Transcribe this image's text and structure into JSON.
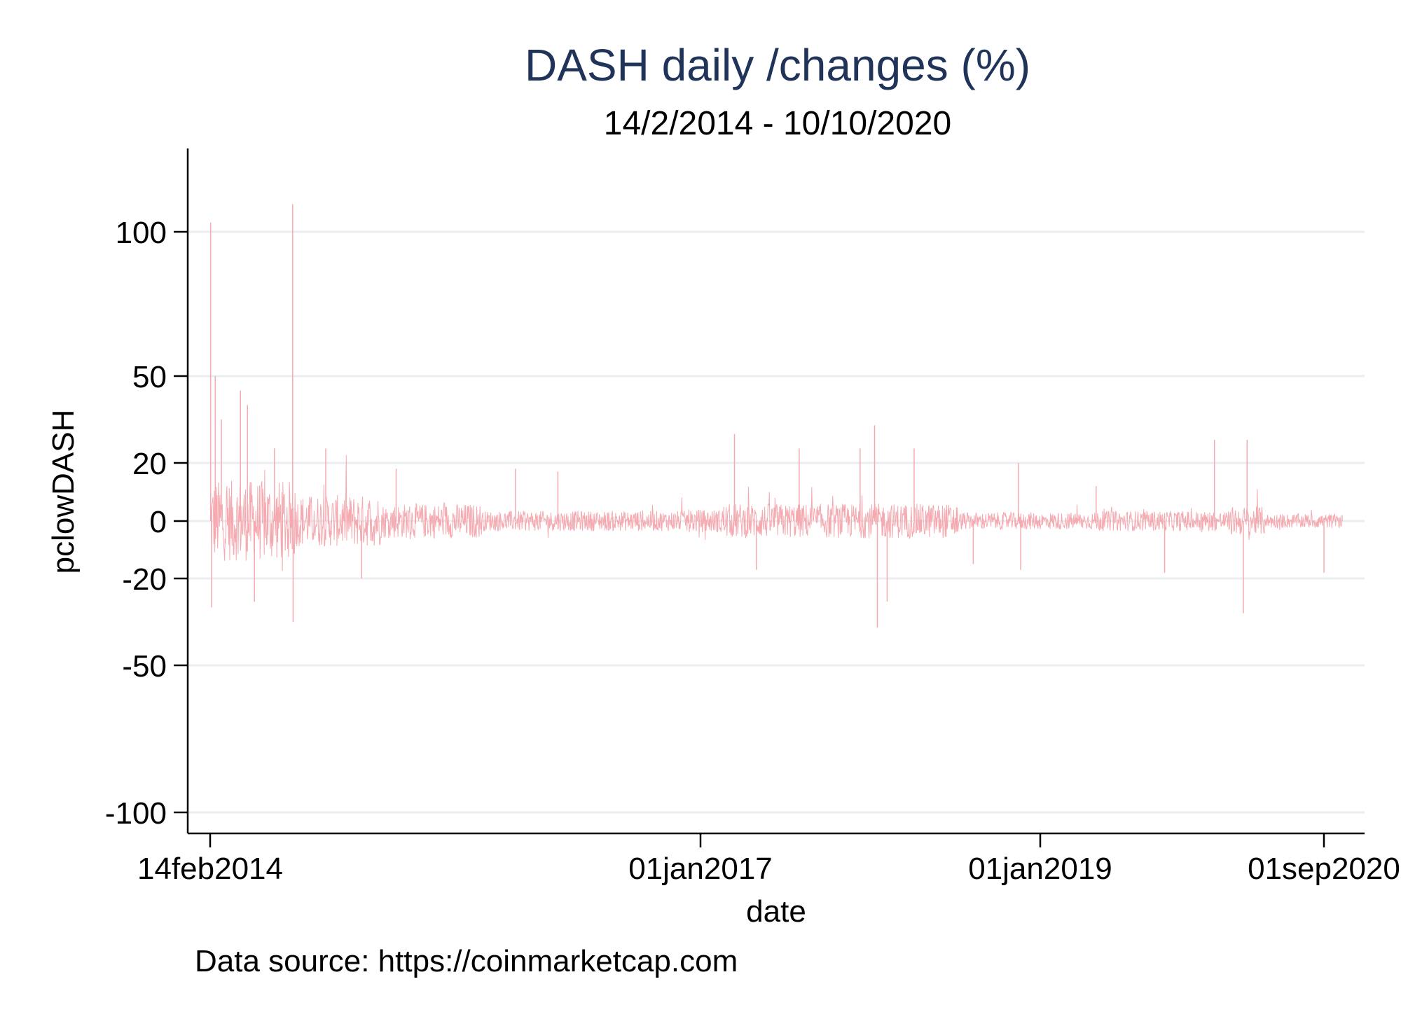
{
  "chart_data": {
    "type": "line",
    "title": "DASH daily /changes (%)",
    "subtitle": "14/2/2014 - 10/10/2020",
    "xlabel": "date",
    "ylabel": "pclowDASH",
    "note": "Data source: https://coinmarketcap.com",
    "ylim": [
      -105,
      125
    ],
    "xlim": [
      "2013-12-01",
      "2020-12-31"
    ],
    "y_ticks": [
      100,
      50,
      20,
      0,
      -20,
      -50,
      -100
    ],
    "y_tick_labels": [
      "100",
      "50",
      "20",
      "0",
      "-20",
      "-50",
      "-100"
    ],
    "x_ticks": [
      "2014-02-14",
      "2017-01-01",
      "2019-01-01",
      "2020-09-01"
    ],
    "x_tick_labels": [
      "14feb2014",
      "01jan2017",
      "01jan2019",
      "01sep2020"
    ],
    "grid": true,
    "series": [
      {
        "color": "#f4aab0",
        "peaks": [
          {
            "date": "2014-02-15",
            "value": 105
          },
          {
            "date": "2014-02-17",
            "value": -30
          },
          {
            "date": "2014-02-25",
            "value": 50
          },
          {
            "date": "2014-03-10",
            "value": 35
          },
          {
            "date": "2014-04-20",
            "value": 45
          },
          {
            "date": "2014-05-05",
            "value": 40
          },
          {
            "date": "2014-05-20",
            "value": -28
          },
          {
            "date": "2014-07-02",
            "value": 25
          },
          {
            "date": "2014-08-10",
            "value": 115
          },
          {
            "date": "2014-08-11",
            "value": -35
          },
          {
            "date": "2014-10-20",
            "value": 25
          },
          {
            "date": "2015-01-05",
            "value": -20
          },
          {
            "date": "2015-03-20",
            "value": 18
          },
          {
            "date": "2015-12-01",
            "value": 18
          },
          {
            "date": "2016-03-01",
            "value": 17
          },
          {
            "date": "2017-03-15",
            "value": 30
          },
          {
            "date": "2017-05-01",
            "value": -17
          },
          {
            "date": "2017-08-01",
            "value": 25
          },
          {
            "date": "2017-12-10",
            "value": 25
          },
          {
            "date": "2018-01-10",
            "value": 33
          },
          {
            "date": "2018-01-16",
            "value": -37
          },
          {
            "date": "2018-02-06",
            "value": -28
          },
          {
            "date": "2018-04-05",
            "value": 25
          },
          {
            "date": "2018-08-10",
            "value": -15
          },
          {
            "date": "2018-11-15",
            "value": 20
          },
          {
            "date": "2018-11-20",
            "value": -17
          },
          {
            "date": "2019-05-01",
            "value": 12
          },
          {
            "date": "2019-09-25",
            "value": -18
          },
          {
            "date": "2020-01-10",
            "value": 28
          },
          {
            "date": "2020-03-12",
            "value": -32
          },
          {
            "date": "2020-03-20",
            "value": 28
          },
          {
            "date": "2020-09-01",
            "value": -18
          },
          {
            "date": "2020-10-10",
            "value": 2
          }
        ]
      }
    ]
  }
}
